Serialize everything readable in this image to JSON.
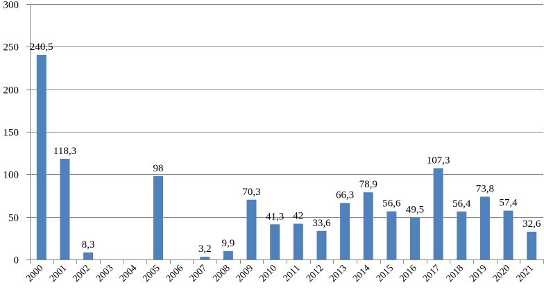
{
  "chart_data": {
    "type": "bar",
    "categories": [
      "2000",
      "2001",
      "2002",
      "2003",
      "2004",
      "2005",
      "2006",
      "2007",
      "2008",
      "2009",
      "2010",
      "2011",
      "2012",
      "2013",
      "2014",
      "2015",
      "2016",
      "2017",
      "2018",
      "2019",
      "2020",
      "2021"
    ],
    "values": [
      240.5,
      118.3,
      8.3,
      null,
      null,
      98,
      null,
      3.2,
      9.9,
      70.3,
      41.3,
      42,
      33.6,
      66.3,
      78.9,
      56.6,
      49.5,
      107.3,
      56.4,
      73.8,
      57.4,
      32.6
    ],
    "data_labels": [
      "240,5",
      "118,3",
      "8,3",
      "",
      "",
      "98",
      "",
      "3,2",
      "9,9",
      "70,3",
      "41,3",
      "42",
      "33,6",
      "66,3",
      "78,9",
      "56,6",
      "49,5",
      "107,3",
      "56,4",
      "73,8",
      "57,4",
      "32,6"
    ],
    "ylim": [
      0,
      300
    ],
    "yticks": [
      "0",
      "50",
      "100",
      "150",
      "200",
      "250",
      "300"
    ],
    "grid": true,
    "bar_color": "#4f81bd",
    "grid_color": "#878787"
  }
}
